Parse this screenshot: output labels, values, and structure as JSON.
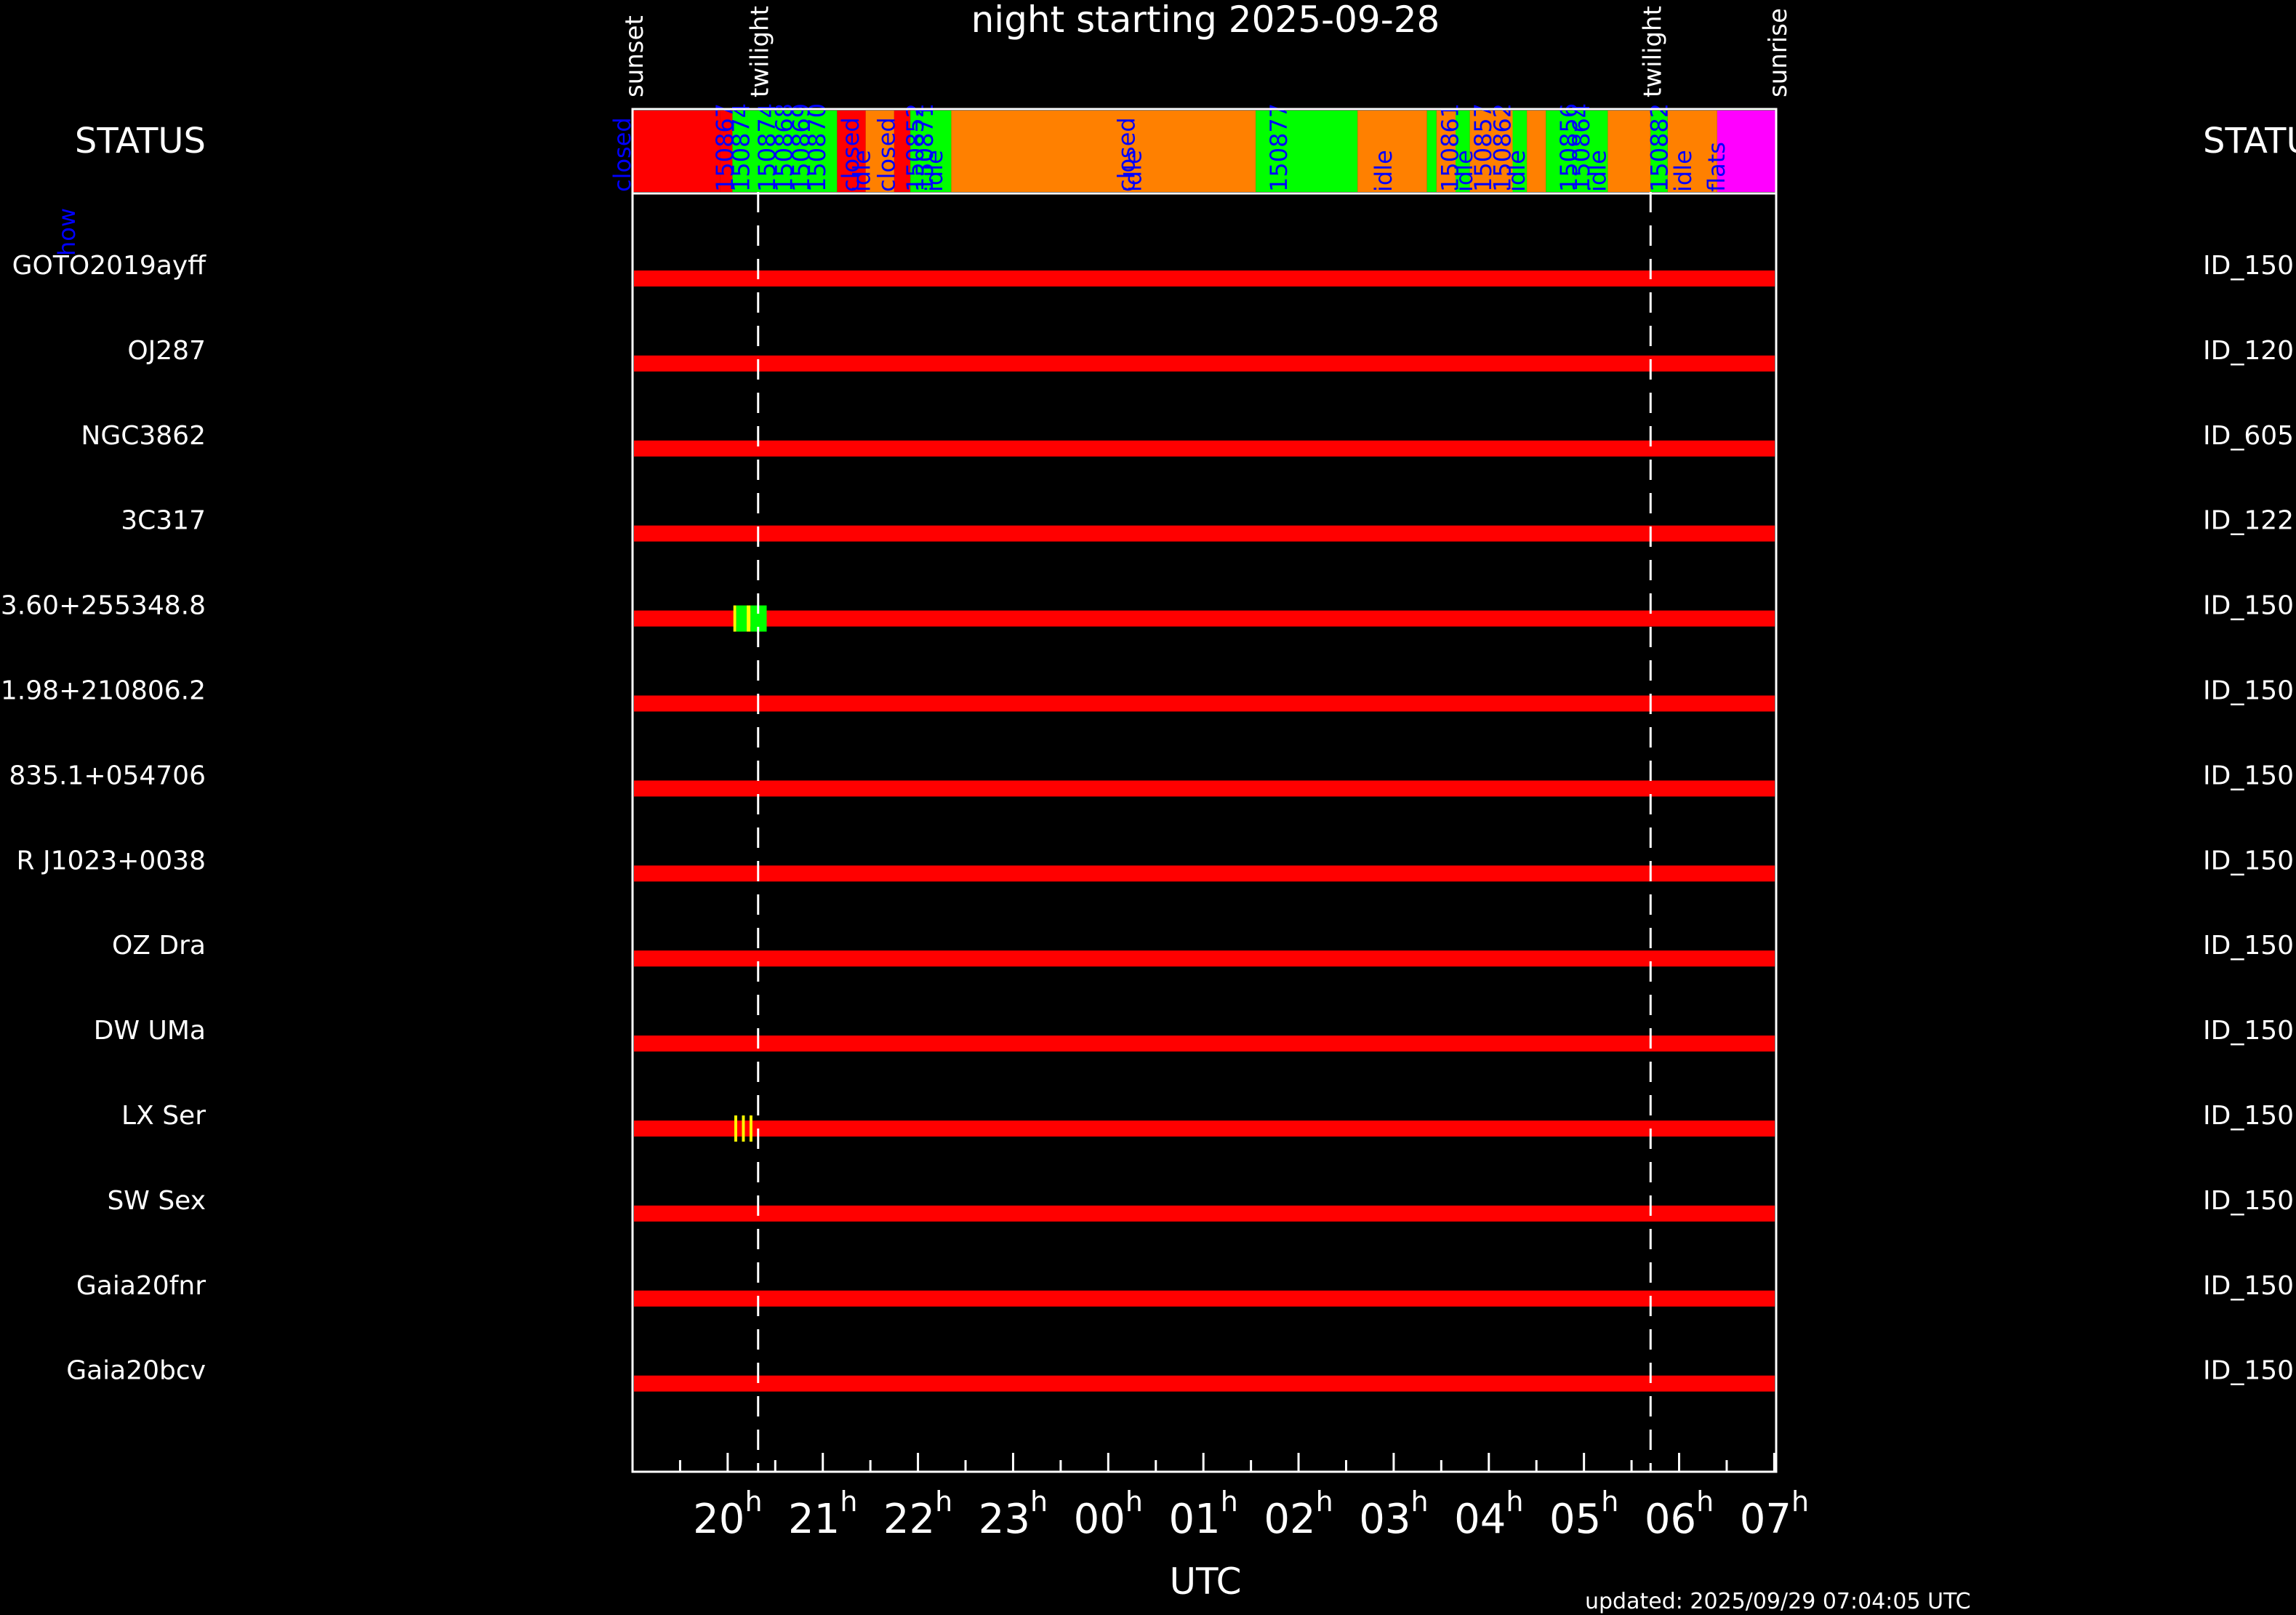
{
  "title": "night starting 2025-09-28",
  "footer": "updated: 2025/09/29 07:04:05 UTC",
  "xlabel": "UTC",
  "status_left": "STATUS",
  "status_right": "STATUS",
  "how_label": "how",
  "colors": {
    "background": "#000000",
    "red": "#ff0000",
    "orange": "#ff8000",
    "green": "#00ff00",
    "magenta": "#ff00ff",
    "yellow": "#ffff00",
    "blue_text": "#0000ff",
    "axis": "#ffffff"
  },
  "chart_data": {
    "type": "timeline",
    "x_unit": "hours UTC after 19:00 on 2025-09-28",
    "xlim": [
      19.0,
      31.02
    ],
    "ticks": [
      {
        "label": "20",
        "t": 20
      },
      {
        "label": "21",
        "t": 21
      },
      {
        "label": "22",
        "t": 22
      },
      {
        "label": "23",
        "t": 23
      },
      {
        "label": "00",
        "t": 24
      },
      {
        "label": "01",
        "t": 25
      },
      {
        "label": "02",
        "t": 26
      },
      {
        "label": "03",
        "t": 27
      },
      {
        "label": "04",
        "t": 28
      },
      {
        "label": "05",
        "t": 29
      },
      {
        "label": "06",
        "t": 30
      },
      {
        "label": "07",
        "t": 31
      }
    ],
    "tick_suffix": "h",
    "events": [
      {
        "label": "sunset",
        "t": 19.0,
        "line": false
      },
      {
        "label": "twilight",
        "t": 20.32,
        "line": true
      },
      {
        "label": "twilight",
        "t": 29.7,
        "line": true
      },
      {
        "label": "sunrise",
        "t": 31.02,
        "line": false
      }
    ],
    "status_segments": [
      {
        "start": 19.0,
        "end": 19.92,
        "color": "red"
      },
      {
        "start": 19.92,
        "end": 20.05,
        "color": "red"
      },
      {
        "start": 20.05,
        "end": 20.2,
        "color": "green"
      },
      {
        "start": 20.2,
        "end": 21.15,
        "color": "green"
      },
      {
        "start": 21.15,
        "end": 21.45,
        "color": "red"
      },
      {
        "start": 21.45,
        "end": 21.75,
        "color": "orange"
      },
      {
        "start": 21.75,
        "end": 21.92,
        "color": "red"
      },
      {
        "start": 21.92,
        "end": 22.35,
        "color": "green"
      },
      {
        "start": 22.35,
        "end": 25.55,
        "color": "orange"
      },
      {
        "start": 25.55,
        "end": 26.62,
        "color": "green"
      },
      {
        "start": 26.62,
        "end": 27.35,
        "color": "orange"
      },
      {
        "start": 27.35,
        "end": 27.45,
        "color": "green"
      },
      {
        "start": 27.45,
        "end": 27.65,
        "color": "orange"
      },
      {
        "start": 27.65,
        "end": 27.8,
        "color": "green"
      },
      {
        "start": 27.8,
        "end": 28.25,
        "color": "orange"
      },
      {
        "start": 28.25,
        "end": 28.4,
        "color": "green"
      },
      {
        "start": 28.4,
        "end": 28.6,
        "color": "orange"
      },
      {
        "start": 28.6,
        "end": 29.25,
        "color": "green"
      },
      {
        "start": 29.25,
        "end": 29.7,
        "color": "orange"
      },
      {
        "start": 29.7,
        "end": 29.88,
        "color": "green"
      },
      {
        "start": 29.88,
        "end": 30.4,
        "color": "orange"
      },
      {
        "start": 30.4,
        "end": 31.02,
        "color": "magenta"
      }
    ],
    "status_labels": [
      {
        "text": "closed",
        "t": 18.9
      },
      {
        "text": "150867",
        "t": 19.98
      },
      {
        "text": "150874",
        "t": 20.15
      },
      {
        "text": "150874",
        "t": 20.42
      },
      {
        "text": "150868",
        "t": 20.6
      },
      {
        "text": "150869",
        "t": 20.78
      },
      {
        "text": "150870",
        "t": 20.95
      },
      {
        "text": "closed",
        "t": 21.3
      },
      {
        "text": "idle",
        "t": 21.42
      },
      {
        "text": "closed",
        "t": 21.68
      },
      {
        "text": "150852",
        "t": 21.98
      },
      {
        "text": "150871",
        "t": 22.08
      },
      {
        "text": "idle",
        "t": 22.18
      },
      {
        "text": "closed",
        "t": 24.2
      },
      {
        "text": "idle",
        "t": 24.27
      },
      {
        "text": "150877",
        "t": 25.8
      },
      {
        "text": "idle",
        "t": 26.9
      },
      {
        "text": "150861",
        "t": 27.6
      },
      {
        "text": "idle",
        "t": 27.75
      },
      {
        "text": "150857",
        "t": 27.95
      },
      {
        "text": "150862",
        "t": 28.15
      },
      {
        "text": "idle",
        "t": 28.3
      },
      {
        "text": "150856",
        "t": 28.85
      },
      {
        "text": "150864",
        "t": 28.98
      },
      {
        "text": "idle",
        "t": 29.15
      },
      {
        "text": "150882",
        "t": 29.8
      },
      {
        "text": "idle",
        "t": 30.05
      },
      {
        "text": "flats",
        "t": 30.4
      }
    ],
    "targets": [
      {
        "name": "GOTO2019ayff",
        "id": "ID_150",
        "marks": []
      },
      {
        "name": "OJ287",
        "id": "ID_120",
        "marks": []
      },
      {
        "name": "NGC3862",
        "id": "ID_605",
        "marks": []
      },
      {
        "name": "3C317",
        "id": "ID_122",
        "marks": []
      },
      {
        "name": "3.60+255348.8",
        "id": "ID_150",
        "marks": [
          {
            "start": 20.06,
            "end": 20.09,
            "color": "yellow"
          },
          {
            "start": 20.09,
            "end": 20.2,
            "color": "green"
          },
          {
            "start": 20.2,
            "end": 20.24,
            "color": "yellow"
          },
          {
            "start": 20.24,
            "end": 20.41,
            "color": "green"
          }
        ]
      },
      {
        "name": "1.98+210806.2",
        "id": "ID_150",
        "marks": []
      },
      {
        "name": "835.1+054706",
        "id": "ID_150",
        "marks": []
      },
      {
        "name": "R J1023+0038",
        "id": "ID_150",
        "marks": []
      },
      {
        "name": "OZ Dra",
        "id": "ID_150",
        "marks": []
      },
      {
        "name": "DW UMa",
        "id": "ID_150",
        "marks": []
      },
      {
        "name": "LX Ser",
        "id": "ID_150",
        "marks": [
          {
            "start": 20.07,
            "end": 20.1,
            "color": "yellow"
          },
          {
            "start": 20.15,
            "end": 20.18,
            "color": "yellow"
          },
          {
            "start": 20.23,
            "end": 20.26,
            "color": "yellow"
          }
        ]
      },
      {
        "name": "SW Sex",
        "id": "ID_150",
        "marks": []
      },
      {
        "name": "Gaia20fnr",
        "id": "ID_150",
        "marks": []
      },
      {
        "name": "Gaia20bcv",
        "id": "ID_150",
        "marks": []
      }
    ]
  }
}
